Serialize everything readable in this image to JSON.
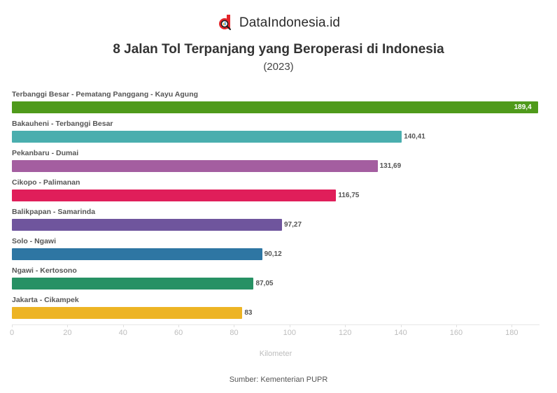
{
  "header": {
    "brand": "DataIndonesia.id",
    "logo_icon": "magnifier-d-logo-icon",
    "title": "8 Jalan Tol Terpanjang yang Beroperasi di Indonesia",
    "subtitle": "(2023)"
  },
  "footer": {
    "source": "Sumber: Kementerian PUPR"
  },
  "chart_data": {
    "type": "bar",
    "orientation": "horizontal",
    "title": "8 Jalan Tol Terpanjang yang Beroperasi di Indonesia",
    "subtitle": "(2023)",
    "xlabel": "Kilometer",
    "ylabel": "",
    "xlim": [
      0,
      190
    ],
    "x_ticks": [
      0,
      20,
      40,
      60,
      80,
      100,
      120,
      140,
      160,
      180
    ],
    "grid": false,
    "legend": "none",
    "categories": [
      "Terbanggi Besar - Pematang Panggang - Kayu Agung",
      "Bakauheni - Terbanggi Besar",
      "Pekanbaru - Dumai",
      "Cikopo - Palimanan",
      "Balikpapan - Samarinda",
      "Solo - Ngawi",
      "Ngawi - Kertosono",
      "Jakarta - Cikampek"
    ],
    "values": [
      189.4,
      140.41,
      131.69,
      116.75,
      97.27,
      90.12,
      87.05,
      83
    ],
    "value_labels": [
      "189,4",
      "140,41",
      "131,69",
      "116,75",
      "97,27",
      "90,12",
      "87,05",
      "83"
    ],
    "colors": [
      "#4f9a1b",
      "#4aaeae",
      "#a45ea0",
      "#e01e5a",
      "#6f559d",
      "#2e76a3",
      "#279164",
      "#edb424"
    ],
    "source": "Sumber: Kementerian PUPR"
  }
}
